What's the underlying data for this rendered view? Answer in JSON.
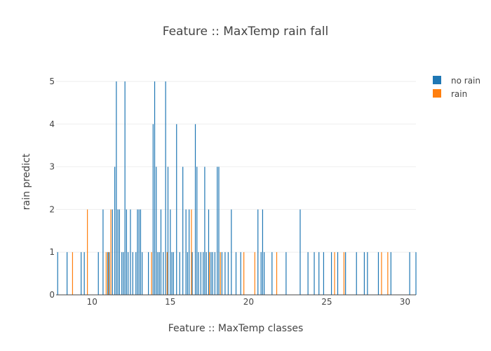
{
  "chart_data": {
    "type": "bar",
    "title": "Feature :: MaxTemp rain fall",
    "xlabel": "Feature :: MaxTemp classes",
    "ylabel": "rain predict",
    "xlim": [
      7.7,
      30.7
    ],
    "ylim": [
      0,
      5.3
    ],
    "xticks": [
      10,
      15,
      20,
      25,
      30
    ],
    "yticks": [
      0,
      1,
      2,
      3,
      4,
      5
    ],
    "grid": true,
    "legend_position": "top-right",
    "series": [
      {
        "name": "no rain",
        "color": "#1f77b4",
        "x": [
          7.8,
          8.4,
          9.3,
          9.5,
          10.4,
          10.7,
          11.0,
          11.1,
          11.3,
          11.45,
          11.55,
          11.65,
          11.75,
          11.9,
          12.0,
          12.1,
          12.2,
          12.3,
          12.45,
          12.6,
          12.8,
          12.9,
          13.0,
          13.1,
          13.2,
          13.6,
          13.9,
          14.0,
          14.1,
          14.2,
          14.3,
          14.4,
          14.55,
          14.7,
          14.85,
          15.0,
          15.1,
          15.2,
          15.4,
          15.6,
          15.8,
          16.0,
          16.1,
          16.2,
          16.4,
          16.6,
          16.7,
          16.8,
          16.95,
          17.1,
          17.2,
          17.3,
          17.45,
          17.6,
          17.7,
          17.85,
          18.0,
          18.1,
          18.3,
          18.5,
          18.7,
          18.9,
          19.2,
          19.5,
          20.6,
          20.8,
          20.9,
          21.0,
          21.5,
          22.4,
          23.3,
          23.8,
          24.2,
          24.5,
          24.8,
          25.3,
          25.7,
          26.2,
          26.9,
          27.4,
          27.6,
          28.3,
          29.1,
          30.3,
          30.7
        ],
        "values": [
          1,
          1,
          1,
          1,
          1,
          2,
          1,
          1,
          2,
          3,
          5,
          2,
          2,
          1,
          1,
          5,
          2,
          1,
          2,
          1,
          1,
          2,
          2,
          2,
          1,
          1,
          4,
          5,
          3,
          1,
          1,
          2,
          1,
          5,
          3,
          2,
          1,
          1,
          4,
          1,
          3,
          2,
          1,
          2,
          1,
          4,
          3,
          1,
          1,
          1,
          3,
          1,
          2,
          1,
          1,
          1,
          3,
          3,
          1,
          1,
          1,
          2,
          1,
          1,
          2,
          1,
          2,
          1,
          1,
          1,
          2,
          1,
          1,
          1,
          1,
          1,
          1,
          1,
          1,
          1,
          1,
          1,
          1,
          1,
          1
        ]
      },
      {
        "name": "rain",
        "color": "#ff7f0e",
        "x": [
          8.75,
          9.7,
          10.9,
          11.05,
          11.2,
          13.8,
          14.8,
          16.35,
          17.5,
          18.2,
          19.7,
          20.4,
          21.8,
          25.5,
          26.1,
          28.5,
          28.9
        ],
        "values": [
          1,
          2,
          1,
          1,
          2,
          1,
          1,
          2,
          1,
          1,
          1,
          1,
          1,
          1,
          1,
          1,
          1
        ]
      }
    ]
  }
}
